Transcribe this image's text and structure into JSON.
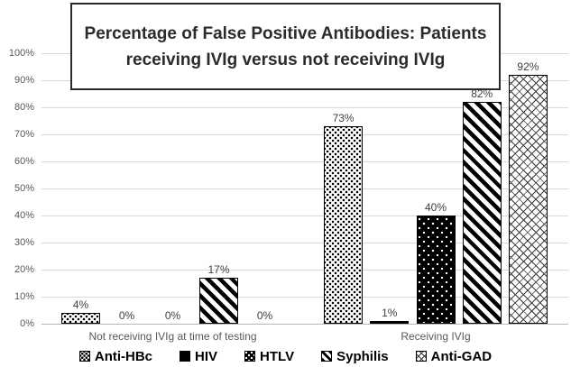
{
  "chart_data": {
    "type": "bar",
    "title": "Percentage of False Positive Antibodies: Patients receiving IVIg versus not receiving IVIg",
    "categories": [
      "Not receiving IVIg at time of testing",
      "Receiving IVIg"
    ],
    "series": [
      {
        "name": "Anti-HBc",
        "pattern": "dots",
        "values": [
          4,
          73
        ],
        "labels": [
          "4%",
          "73%"
        ]
      },
      {
        "name": "HIV",
        "pattern": "solid",
        "values": [
          0,
          1
        ],
        "labels": [
          "0%",
          "1%"
        ]
      },
      {
        "name": "HTLV",
        "pattern": "black-dots",
        "values": [
          0,
          40
        ],
        "labels": [
          "0%",
          "40%"
        ]
      },
      {
        "name": "Syphilis",
        "pattern": "stripes",
        "values": [
          17,
          82
        ],
        "labels": [
          "17%",
          "82%"
        ]
      },
      {
        "name": "Anti-GAD",
        "pattern": "brick",
        "values": [
          0,
          92
        ],
        "labels": [
          "0%",
          "92%"
        ]
      }
    ],
    "y_ticks": [
      "100%",
      "90%",
      "80%",
      "70%",
      "60%",
      "50%",
      "40%",
      "30%",
      "20%",
      "10%",
      "0%"
    ],
    "ylim": [
      0,
      100
    ],
    "grid": true,
    "legend_position": "bottom"
  },
  "colors": {
    "bar_outline": "#000000",
    "gridline": "#d9d9d9",
    "axis_text": "#595959",
    "value_label_text": "#3f3f3f",
    "title_text": "#2b2b2b",
    "background": "#ffffff"
  }
}
